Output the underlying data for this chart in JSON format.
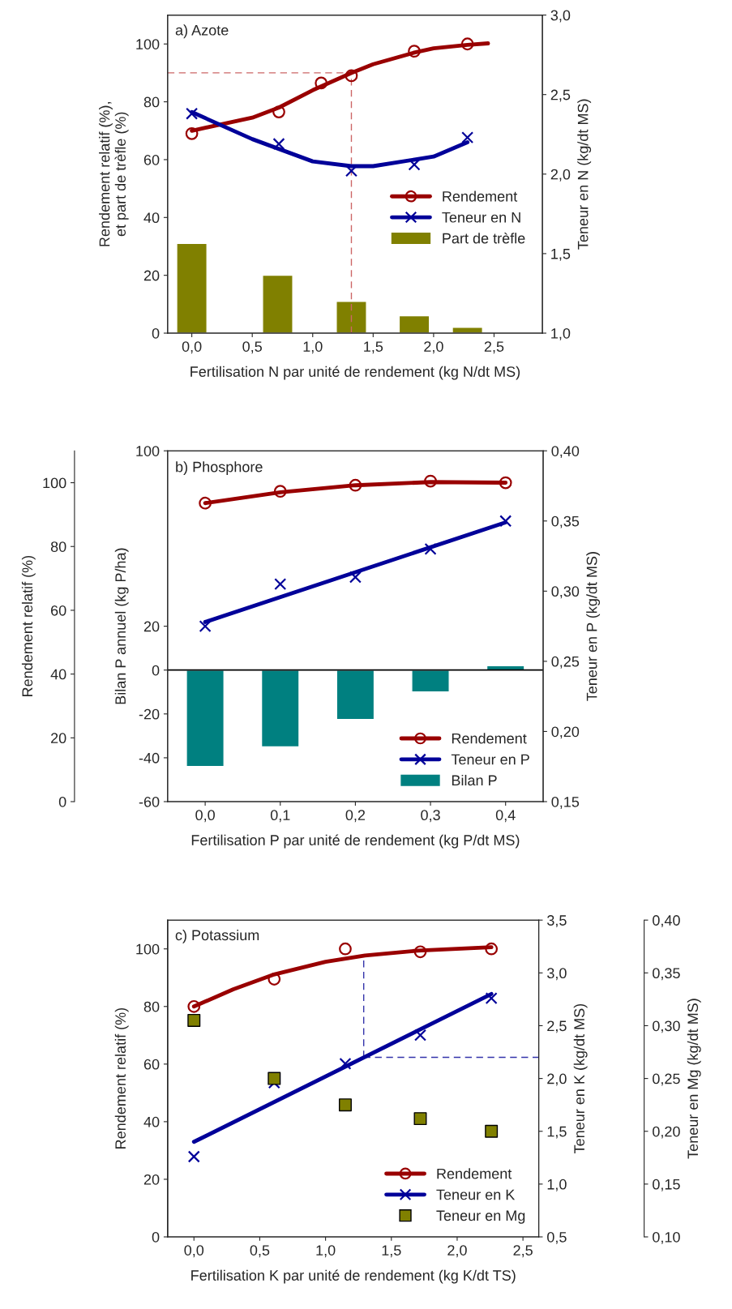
{
  "chart_data": [
    {
      "type": "line",
      "title": "a) Azote",
      "xlabel": "Fertilisation N par unité de rendement (kg N/dt MS)",
      "ylabel": "Rendement relatif (%),\net part de trèfle (%)",
      "y2label": "Teneur en N (kg/dt MS)",
      "xlim": [
        -0.2,
        2.9
      ],
      "xticks": [
        {
          "value": 0,
          "label": "0,0"
        },
        {
          "value": 0.5,
          "label": "0,5"
        },
        {
          "value": 1.0,
          "label": "1,0"
        },
        {
          "value": 1.5,
          "label": "1,5"
        },
        {
          "value": 2.0,
          "label": "2,0"
        },
        {
          "value": 2.5,
          "label": "2,5"
        }
      ],
      "ylim": [
        0,
        110
      ],
      "yticks": [
        0,
        20,
        40,
        60,
        80,
        100
      ],
      "y2lim": [
        1.0,
        3.0
      ],
      "y2ticks": [
        {
          "value": 1.0,
          "label": "1,0"
        },
        {
          "value": 1.5,
          "label": "1,5"
        },
        {
          "value": 2.0,
          "label": "2,0"
        },
        {
          "value": 2.5,
          "label": "2,5"
        },
        {
          "value": 3.0,
          "label": "3,0"
        }
      ],
      "legend": "right",
      "grid": false,
      "series": [
        {
          "type": "scatter",
          "name": "Rendement",
          "color": "#990000",
          "marker": "circle",
          "x": [
            0,
            0.72,
            1.07,
            1.32,
            1.84,
            2.28
          ],
          "values": [
            69,
            76.5,
            86.5,
            89,
            97.5,
            100
          ]
        },
        {
          "color": "#990000",
          "x": [
            0,
            0.5,
            0.72,
            1.0,
            1.32,
            1.5,
            1.84,
            2.0,
            2.28,
            2.45
          ],
          "values": [
            70,
            74.5,
            78,
            84,
            90,
            93,
            97,
            98.5,
            99.7,
            100.2
          ]
        },
        {
          "type": "scatter",
          "name": "Teneur en N",
          "color": "#000099",
          "marker": "cross",
          "axis": "y2",
          "x": [
            0,
            0.72,
            1.32,
            1.84,
            2.28
          ],
          "values": [
            2.38,
            2.19,
            2.02,
            2.06,
            2.23
          ]
        },
        {
          "color": "#000099",
          "axis": "y2",
          "x": [
            0,
            0.5,
            1.0,
            1.32,
            1.5,
            2.0,
            2.28
          ],
          "values": [
            2.39,
            2.22,
            2.08,
            2.05,
            2.05,
            2.11,
            2.2
          ]
        },
        {
          "type": "bar",
          "name": "Part de trèfle",
          "color": "#808000",
          "x": [
            0,
            0.71,
            1.32,
            1.84,
            2.28
          ],
          "values": [
            31,
            20,
            11,
            6,
            2
          ]
        }
      ],
      "ref_lines": [
        {
          "axis": "y",
          "value": 90,
          "color": "#cc6666",
          "line_style": "dashed"
        },
        {
          "axis": "x",
          "value": 1.32,
          "color": "#cc6666",
          "line_style": "dashed"
        }
      ]
    },
    {
      "type": "line",
      "title": "b) Phosphore",
      "xlabel": "Fertilisation P par unité de rendement (kg P/dt MS)",
      "ylabel": "Bilan P annuel (kg P/ha)",
      "y2label": "Teneur en P (kg/dt MS)",
      "y3label": "Rendement relatif (%)",
      "xlim": [
        -0.05,
        0.45
      ],
      "xticks": [
        {
          "value": 0,
          "label": "0,0"
        },
        {
          "value": 0.1,
          "label": "0,1"
        },
        {
          "value": 0.2,
          "label": "0,2"
        },
        {
          "value": 0.3,
          "label": "0,3"
        },
        {
          "value": 0.4,
          "label": "0,4"
        }
      ],
      "ylim": [
        -60,
        100
      ],
      "yticks": [
        -60,
        -40,
        -20,
        0,
        20,
        100
      ],
      "y2lim": [
        0.15,
        0.4
      ],
      "y2ticks": [
        {
          "value": 0.15,
          "label": "0,15"
        },
        {
          "value": 0.2,
          "label": "0,20"
        },
        {
          "value": 0.25,
          "label": "0,25"
        },
        {
          "value": 0.3,
          "label": "0,30"
        },
        {
          "value": 0.35,
          "label": "0,35"
        },
        {
          "value": 0.4,
          "label": "0,40"
        }
      ],
      "y3lim": [
        0,
        110
      ],
      "y3ticks": [
        0,
        20,
        40,
        60,
        80,
        100
      ],
      "legend": "bottom right",
      "grid": false,
      "series": [
        {
          "type": "scatter",
          "name": "Rendement",
          "color": "#990000",
          "marker": "circle",
          "axis": "y3",
          "x": [
            0,
            0.1,
            0.2,
            0.3,
            0.4
          ],
          "values": [
            93.6,
            97.3,
            99.2,
            100.5,
            100
          ]
        },
        {
          "color": "#990000",
          "axis": "y3",
          "x": [
            0,
            0.1,
            0.2,
            0.3,
            0.4
          ],
          "values": [
            93.6,
            97,
            99.2,
            100.2,
            100
          ]
        },
        {
          "type": "scatter",
          "name": "Teneur en P",
          "color": "#000099",
          "marker": "cross",
          "axis": "y2",
          "x": [
            0,
            0.1,
            0.2,
            0.3,
            0.4
          ],
          "values": [
            0.275,
            0.305,
            0.31,
            0.33,
            0.35
          ]
        },
        {
          "color": "#000099",
          "axis": "y2",
          "x": [
            0,
            0.4
          ],
          "values": [
            0.278,
            0.349
          ]
        },
        {
          "type": "bar",
          "name": "Bilan P",
          "color": "#008080",
          "x": [
            0,
            0.1,
            0.2,
            0.3,
            0.4
          ],
          "values": [
            -44,
            -35,
            -22.5,
            -10,
            2
          ]
        }
      ],
      "ref_lines": [
        {
          "axis": "y",
          "value": 0,
          "color": "#000000",
          "line_style": "solid"
        }
      ]
    },
    {
      "type": "line",
      "title": "c) Potassium",
      "xlabel": "Fertilisation K par unité de rendement (kg K/dt TS)",
      "ylabel": "Rendement relatif (%)",
      "y2label": "Teneur en K (kg/dt MS)",
      "y3label": "Teneur en Mg (kg/dt MS)",
      "xlim": [
        -0.2,
        2.62
      ],
      "xticks": [
        {
          "value": 0,
          "label": "0,0"
        },
        {
          "value": 0.5,
          "label": "0,5"
        },
        {
          "value": 1.0,
          "label": "1,0"
        },
        {
          "value": 1.5,
          "label": "1,5"
        },
        {
          "value": 2.0,
          "label": "2,0"
        },
        {
          "value": 2.5,
          "label": "2,5"
        }
      ],
      "ylim": [
        0,
        110
      ],
      "yticks": [
        0,
        20,
        40,
        60,
        80,
        100
      ],
      "y2lim": [
        0.5,
        3.5
      ],
      "y2ticks": [
        {
          "value": 0.5,
          "label": "0,5"
        },
        {
          "value": 1.0,
          "label": "1,0"
        },
        {
          "value": 1.5,
          "label": "1,5"
        },
        {
          "value": 2.0,
          "label": "2,0"
        },
        {
          "value": 2.5,
          "label": "2,5"
        },
        {
          "value": 3.0,
          "label": "3,0"
        },
        {
          "value": 3.5,
          "label": "3,5"
        }
      ],
      "y3lim": [
        0.1,
        0.4
      ],
      "y3ticks": [
        {
          "value": 0.1,
          "label": "0,10"
        },
        {
          "value": 0.15,
          "label": "0,15"
        },
        {
          "value": 0.2,
          "label": "0,20"
        },
        {
          "value": 0.25,
          "label": "0,25"
        },
        {
          "value": 0.3,
          "label": "0,30"
        },
        {
          "value": 0.35,
          "label": "0,35"
        },
        {
          "value": 0.4,
          "label": "0,40"
        }
      ],
      "legend": "bottom right",
      "grid": false,
      "series": [
        {
          "type": "scatter",
          "name": "Rendement",
          "color": "#990000",
          "marker": "circle",
          "x": [
            0,
            0.61,
            1.15,
            1.72,
            2.26
          ],
          "values": [
            80,
            89.5,
            100,
            99,
            100
          ]
        },
        {
          "color": "#990000",
          "x": [
            0,
            0.3,
            0.6,
            1.0,
            1.3,
            1.7,
            2.26
          ],
          "values": [
            80,
            86,
            91,
            95.5,
            97.7,
            99.4,
            100.6
          ]
        },
        {
          "type": "scatter",
          "name": "Teneur en K",
          "color": "#000099",
          "marker": "cross",
          "axis": "y2",
          "x": [
            0,
            0.61,
            1.15,
            1.72,
            2.26
          ],
          "values": [
            1.26,
            1.96,
            2.14,
            2.41,
            2.76
          ]
        },
        {
          "color": "#000099",
          "axis": "y2",
          "x": [
            0,
            2.26
          ],
          "values": [
            1.4,
            2.8
          ]
        },
        {
          "type": "scatter",
          "name": "Teneur en Mg",
          "color": "#808000",
          "marker": "square",
          "axis": "y3",
          "x": [
            0,
            0.61,
            1.15,
            1.72,
            2.26
          ],
          "values": [
            0.305,
            0.25,
            0.225,
            0.212,
            0.2
          ]
        }
      ],
      "ref_lines": [
        {
          "axis": "x",
          "value": 1.29,
          "color": "#3333aa",
          "line_style": "dashed"
        },
        {
          "axis": "y2",
          "value": 2.2,
          "color": "#3333aa",
          "line_style": "dashed"
        }
      ]
    }
  ]
}
